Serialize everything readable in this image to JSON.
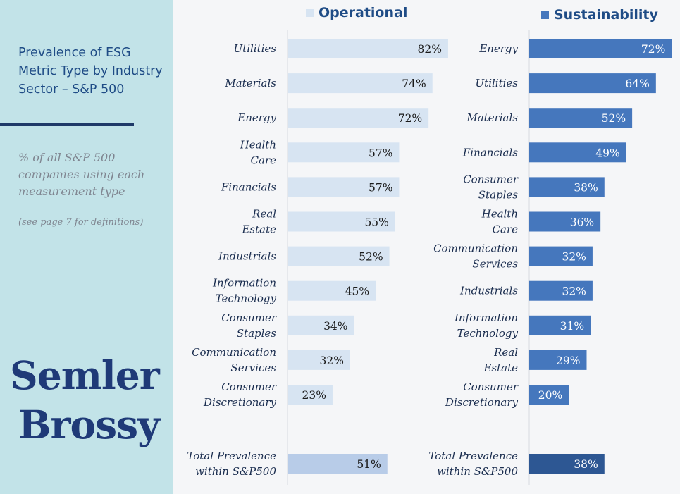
{
  "sidebar": {
    "title": "Prevalence of ESG Metric Type by Industry Sector – S&P 500",
    "subtitle": "% of all S&P 500 companies using each measurement type",
    "note": "(see page 7 for definitions)",
    "logo_line1": "Semler",
    "logo_line2": "Brossy"
  },
  "colors": {
    "operational_bar": "#d7e4f2",
    "operational_total": "#b8cce8",
    "sustainability_bar": "#4577bd",
    "sustainability_total": "#2d5793",
    "sidebar_bg": "#c2e3e8"
  },
  "chart_data": [
    {
      "type": "bar",
      "orientation": "horizontal",
      "legend": "Operational",
      "value_suffix": "%",
      "xlim": [
        0,
        100
      ],
      "categories": [
        [
          "Utilities"
        ],
        [
          "Materials"
        ],
        [
          "Energy"
        ],
        [
          "Health",
          "Care"
        ],
        [
          "Financials"
        ],
        [
          "Real",
          "Estate"
        ],
        [
          "Industrials"
        ],
        [
          "Information",
          "Technology"
        ],
        [
          "Consumer",
          "Staples"
        ],
        [
          "Communication",
          "Services"
        ],
        [
          "Consumer",
          "Discretionary"
        ]
      ],
      "values": [
        82,
        74,
        72,
        57,
        57,
        55,
        52,
        45,
        34,
        32,
        23
      ],
      "total": {
        "label": [
          "Total Prevalence",
          "within S&P500"
        ],
        "value": 51
      }
    },
    {
      "type": "bar",
      "orientation": "horizontal",
      "legend": "Sustainability",
      "value_suffix": "%",
      "xlim": [
        0,
        100
      ],
      "categories": [
        [
          "Energy"
        ],
        [
          "Utilities"
        ],
        [
          "Materials"
        ],
        [
          "Financials"
        ],
        [
          "Consumer",
          "Staples"
        ],
        [
          "Health",
          "Care"
        ],
        [
          "Communication",
          "Services"
        ],
        [
          "Industrials"
        ],
        [
          "Information",
          "Technology"
        ],
        [
          "Real",
          "Estate"
        ],
        [
          "Consumer",
          "Discretionary"
        ]
      ],
      "values": [
        72,
        64,
        52,
        49,
        38,
        36,
        32,
        32,
        31,
        29,
        20
      ],
      "total": {
        "label": [
          "Total Prevalence",
          "within S&P500"
        ],
        "value": 38
      }
    }
  ]
}
